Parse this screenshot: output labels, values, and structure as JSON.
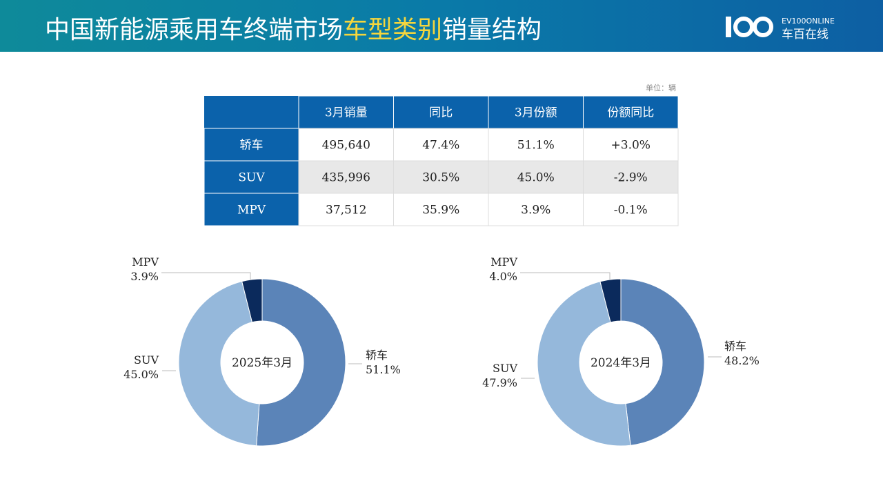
{
  "header": {
    "title_parts": [
      "中国新能源乘用车终端市场",
      "车型类别",
      "销量结构"
    ],
    "logo_top": "EV100ONLINE",
    "logo_bottom": "车百在线"
  },
  "unit": "单位：辆",
  "table": {
    "columns": [
      "3月销量",
      "同比",
      "3月份额",
      "份额同比"
    ],
    "rows": [
      {
        "label": "轿车",
        "cells": [
          "495,640",
          "47.4%",
          "51.1%",
          "+3.0%"
        ]
      },
      {
        "label": "SUV",
        "cells": [
          "435,996",
          "30.5%",
          "45.0%",
          "-2.9%"
        ]
      },
      {
        "label": "MPV",
        "cells": [
          "37,512",
          "35.9%",
          "3.9%",
          "-0.1%"
        ]
      }
    ]
  },
  "chart_data": [
    {
      "type": "donut",
      "title": "2025年3月",
      "categories": [
        "轿车",
        "SUV",
        "MPV"
      ],
      "values": [
        51.1,
        45.0,
        3.9
      ],
      "value_labels": [
        "51.1%",
        "45.0%",
        "3.9%"
      ],
      "colors": [
        "#5b84b8",
        "#95b8db",
        "#0b2a5c"
      ]
    },
    {
      "type": "donut",
      "title": "2024年3月",
      "categories": [
        "轿车",
        "SUV",
        "MPV"
      ],
      "values": [
        48.2,
        47.9,
        4.0
      ],
      "value_labels": [
        "48.2%",
        "47.9%",
        "4.0%"
      ],
      "colors": [
        "#5b84b8",
        "#95b8db",
        "#0b2a5c"
      ]
    }
  ]
}
